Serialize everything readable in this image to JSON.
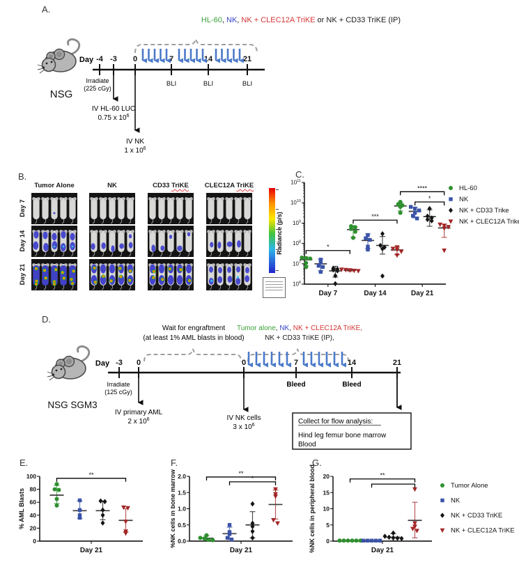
{
  "panel_labels": {
    "A": "A.",
    "B": "B.",
    "C": "C.",
    "D": "D.",
    "E": "E.",
    "F": "F.",
    "G": "G."
  },
  "panelA": {
    "title_parts": [
      {
        "text": "HL-60"
      },
      {
        "text": ", "
      },
      {
        "text": "NK"
      },
      {
        "text": ", "
      },
      {
        "text": "NK + CLEC12A TriKE"
      },
      {
        "text": " or NK + CD33 TriKE (IP)"
      }
    ],
    "day_word": "Day",
    "tick_labels": [
      "-4",
      "-3",
      "0",
      "7",
      "14",
      "21"
    ],
    "bli": [
      "BLI",
      "BLI",
      "BLI"
    ],
    "irradiate": [
      "Irradiate",
      "(225 cGy)"
    ],
    "inj1": [
      "IV HL-60 LUC",
      "0.75 x 10",
      "6"
    ],
    "inj2": [
      "IV NK",
      "1 x 10",
      "6"
    ],
    "mouse": "NSG"
  },
  "panelB": {
    "col_headers": [
      {
        "plain": "Tumor Alone",
        "wavy": ""
      },
      {
        "plain": "NK",
        "wavy": ""
      },
      {
        "plain": "CD33 ",
        "wavy": "TriKE"
      },
      {
        "plain": "CLEC12A ",
        "wavy": "TriKE"
      }
    ],
    "row_labels": [
      "Day 7",
      "Day 14",
      "Day 21"
    ],
    "colorbar_label": "Radiance (p/s)",
    "levels": [
      [
        "trace",
        "none",
        "none",
        "none"
      ],
      [
        "blue",
        "low",
        "low",
        "low"
      ],
      [
        "max",
        "high",
        "high",
        "medium"
      ]
    ]
  },
  "panelD": {
    "title1_parts": [
      {
        "text": "Tumor alone"
      },
      {
        "text": ", "
      },
      {
        "text": "NK"
      },
      {
        "text": ", "
      },
      {
        "text": "NK + CLEC12A TriKE,"
      }
    ],
    "title2": "NK + CD33 TriKE (IP),",
    "wait1": "Wait for engraftment",
    "wait2": "(at least 1% AML blasts in blood)",
    "day_word": "Day",
    "tick_labels": [
      "-3",
      "0",
      "0",
      "7",
      "14",
      "21"
    ],
    "bleed": [
      "Bleed",
      "Bleed"
    ],
    "irradiate": [
      "Irradiate",
      "(125 cGy)"
    ],
    "inj1": [
      "IV primary AML",
      "2 x 10",
      "6"
    ],
    "inj2": [
      "IV NK cells",
      "3 x 10",
      "6"
    ],
    "box": {
      "title": "Collect for flow analysis:",
      "lines": [
        "Hind leg femur bone marrow",
        "Blood"
      ]
    },
    "mouse": "NSG SGM3"
  },
  "chart_data": [
    {
      "panel": "C",
      "type": "scatter",
      "log": true,
      "title": "",
      "ylabel": "Radiance (p/s)",
      "ylim": [
        6,
        11
      ],
      "categories": [
        "Day 7",
        "Day 14",
        "Day 21"
      ],
      "series": [
        {
          "name": "HL-60",
          "marker": "circle",
          "color": "#2f8f2f",
          "values": [
            [
              20000000.0,
              19000000.0,
              18000000.0,
              11000000.0,
              7000000.0
            ],
            [
              700000000.0,
              630000000.0,
              520000000.0,
              380000000.0,
              190000000.0
            ],
            [
              11000000000.0,
              8500000000.0,
              7500000000.0,
              6300000000.0,
              3200000000.0
            ]
          ],
          "mean": [
            16000000.0,
            480000000.0,
            7000000000.0
          ],
          "err": [
            [
              8000000.0,
              22000000.0
            ],
            [
              200000000.0,
              750000000.0
            ],
            [
              4000000000.0,
              10500000000.0
            ]
          ]
        },
        {
          "name": "NK",
          "marker": "square",
          "color": "#3a53a8",
          "values": [
            [
              16000000.0,
              12000000.0,
              8000000.0,
              7000000.0,
              4000000.0
            ],
            [
              260000000.0,
              180000000.0,
              150000000.0,
              70000000.0,
              50000000.0
            ],
            [
              6300000000.0,
              5200000000.0,
              4200000000.0,
              3200000000.0,
              2300000000.0,
              1700000000.0
            ]
          ],
          "mean": [
            10000000.0,
            140000000.0,
            3800000000.0
          ],
          "err": [
            [
              4500000.0,
              17000000.0
            ],
            [
              55000000.0,
              300000000.0
            ],
            [
              1800000000.0,
              6000000000.0
            ]
          ]
        },
        {
          "name": "NK + CD33 Trike",
          "marker": "diamond",
          "color": "#151515",
          "values": [
            [
              6000000.0,
              5500000.0,
              5000000.0,
              4500000.0,
              2600000.0,
              1050000.0
            ],
            [
              300000000.0,
              80000000.0,
              65000000.0,
              55000000.0,
              2500000.0
            ],
            [
              5200000000.0,
              2200000000.0,
              1800000000.0,
              1500000000.0,
              1300000000.0
            ]
          ],
          "mean": [
            4500000.0,
            80000000.0,
            2100000000.0
          ],
          "err": [
            [
              2200000.0,
              7500000.0
            ],
            [
              30000000.0,
              220000000.0
            ],
            [
              700000000.0,
              4500000000.0
            ]
          ]
        },
        {
          "name": "NK + CLEC12A Trike",
          "marker": "triangle",
          "color": "#a32424",
          "values": [
            [
              5200000.0,
              5000000.0,
              4800000.0,
              4600000.0,
              4400000.0
            ],
            [
              65000000.0,
              55000000.0,
              50000000.0,
              40000000.0,
              26000000.0
            ],
            [
              850000000.0,
              750000000.0,
              650000000.0,
              550000000.0,
              45000000.0
            ]
          ],
          "mean": [
            4800000.0,
            48000000.0,
            580000000.0
          ],
          "err": [
            [
              4200000.0,
              5500000.0
            ],
            [
              28000000.0,
              68000000.0
            ],
            [
              200000000.0,
              900000000.0
            ]
          ]
        }
      ],
      "sig": [
        {
          "cat": 0,
          "from": 0,
          "to": 3,
          "y": 45000000.0,
          "label": "*"
        },
        {
          "cat": 1,
          "from": 0,
          "to": 3,
          "y": 1400000000.0,
          "label": "***"
        },
        {
          "cat": 2,
          "from": 0,
          "to": 3,
          "y": 35000000000.0,
          "label": "****"
        },
        {
          "cat": 2,
          "from": 1,
          "to": 3,
          "y": 11000000000.0,
          "label": "*"
        }
      ]
    },
    {
      "panel": "E",
      "type": "scatter",
      "log": false,
      "ylabel": "% AML Blasts",
      "ylim": [
        0,
        100
      ],
      "yticks": [
        "0",
        "20",
        "40",
        "60",
        "80",
        "100"
      ],
      "categories": [
        "Day 21"
      ],
      "series": [
        {
          "name": "Tumor Alone",
          "marker": "circle",
          "color": "#2f8f2f",
          "values": [
            [
              88,
              80,
              79,
              65,
              55
            ]
          ],
          "mean": [
            71
          ],
          "err": [
            [
              58,
              86
            ]
          ]
        },
        {
          "name": "NK",
          "marker": "square",
          "color": "#3a53a8",
          "values": [
            [
              63,
              48,
              40,
              36
            ]
          ],
          "mean": [
            47
          ],
          "err": [
            [
              35,
              62
            ]
          ]
        },
        {
          "name": "NK + CD33 TriKE",
          "marker": "diamond",
          "color": "#151515",
          "values": [
            [
              62,
              61,
              48,
              40,
              28
            ]
          ],
          "mean": [
            47
          ],
          "err": [
            [
              33,
              62
            ]
          ]
        },
        {
          "name": "NK + CLEC12A TriKE",
          "marker": "triangle",
          "color": "#a32424",
          "values": [
            [
              52,
              51,
              30,
              15,
              12
            ]
          ],
          "mean": [
            32
          ],
          "err": [
            [
              14,
              50
            ]
          ]
        }
      ],
      "sig": [
        {
          "cat": 0,
          "from": 0,
          "to": 3,
          "y": 97,
          "label": "**"
        }
      ]
    },
    {
      "panel": "F",
      "type": "scatter",
      "log": false,
      "ylabel": "%NK cells in bone marrow",
      "ylim": [
        0,
        2
      ],
      "yticks": [
        "0.0",
        "0.5",
        "1.0",
        "1.5",
        "2.0"
      ],
      "categories": [
        "Day 21"
      ],
      "series": [
        {
          "name": "Tumor Alone",
          "marker": "circle",
          "color": "#2f8f2f",
          "values": [
            [
              0.18,
              0.1,
              0.08,
              0.04,
              0.03
            ]
          ],
          "mean": [
            0.09
          ],
          "err": [
            [
              0.02,
              0.17
            ]
          ]
        },
        {
          "name": "NK",
          "marker": "square",
          "color": "#3a53a8",
          "values": [
            [
              0.5,
              0.28,
              0.22,
              0.1,
              0.05
            ]
          ],
          "mean": [
            0.23
          ],
          "err": [
            [
              0.05,
              0.43
            ]
          ]
        },
        {
          "name": "NK + CD33 TriKE",
          "marker": "diamond",
          "color": "#151515",
          "values": [
            [
              1.15,
              0.55,
              0.45,
              0.3,
              0.1
            ]
          ],
          "mean": [
            0.5
          ],
          "err": [
            [
              0.1,
              0.91
            ]
          ]
        },
        {
          "name": "NK + CLEC12A TriKE",
          "marker": "triangle",
          "color": "#a32424",
          "values": [
            [
              1.6,
              1.45,
              1.38,
              0.65,
              0.55
            ]
          ],
          "mean": [
            1.13
          ],
          "err": [
            [
              0.68,
              1.58
            ]
          ]
        }
      ],
      "sig": [
        {
          "cat": 0,
          "from": 0,
          "to": 3,
          "y": 1.98,
          "label": "**"
        },
        {
          "cat": 0,
          "from": 1,
          "to": 3,
          "y": 1.83,
          "label": "*"
        }
      ]
    },
    {
      "panel": "G",
      "type": "scatter",
      "log": false,
      "ylabel": "%NK cells in peripheral blood",
      "ylim": [
        0,
        20
      ],
      "yticks": [
        "0",
        "5",
        "10",
        "15",
        "20"
      ],
      "categories": [
        "Day 21"
      ],
      "series": [
        {
          "name": "Tumor Alone",
          "marker": "circle",
          "color": "#2f8f2f",
          "values": [
            [
              0.15,
              0.15,
              0.15,
              0.15,
              0.15,
              0.15
            ]
          ],
          "mean": [
            0.15
          ],
          "err": null
        },
        {
          "name": "NK",
          "marker": "square",
          "color": "#3a53a8",
          "values": [
            [
              0.15,
              0.15,
              0.15,
              0.15,
              0.15
            ]
          ],
          "mean": [
            0.15
          ],
          "err": null
        },
        {
          "name": "NK + CD33 TriKE",
          "marker": "diamond",
          "color": "#151515",
          "values": [
            [
              2.5,
              1.5,
              1.2,
              1.0,
              0.9,
              0.8
            ]
          ],
          "mean": [
            1.2
          ],
          "err": [
            [
              0.1,
              2.3
            ]
          ]
        },
        {
          "name": "NK + CLEC12A TriKE",
          "marker": "triangle",
          "color": "#a32424",
          "values": [
            [
              16,
              5.5,
              4.5,
              3.8,
              3.2
            ]
          ],
          "mean": [
            6.4
          ],
          "err": [
            [
              1.0,
              12.0
            ]
          ]
        }
      ],
      "sig": [
        {
          "cat": 0,
          "from": 0,
          "to": 3,
          "y": 19.2,
          "label": "**"
        },
        {
          "cat": 0,
          "from": 1,
          "to": 3,
          "y": 17.6,
          "label": ""
        }
      ]
    }
  ]
}
